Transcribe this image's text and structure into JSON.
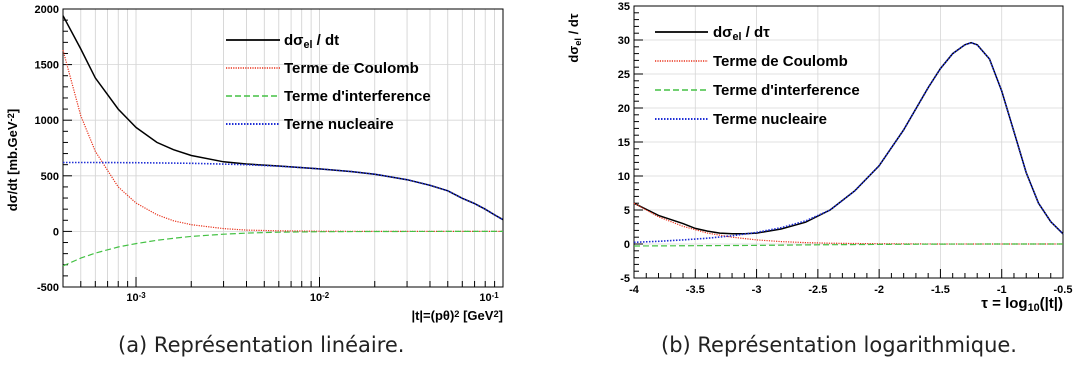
{
  "captions": {
    "a": "(a) Représentation linéaire.",
    "b": "(b) Représentation logarithmique."
  },
  "chart_data": [
    {
      "type": "line",
      "xscale": "log",
      "xlim": [
        0.0004,
        0.1
      ],
      "ylim": [
        -500,
        2000
      ],
      "grid": true,
      "legend_position": "top-right",
      "ylabel": "dσ/dt [mb.GeV⁻²]",
      "xlabel": "|t|=(pθ)² [GeV²]",
      "yticks": [
        "-500",
        "0",
        "500",
        "1000",
        "1500",
        "2000"
      ],
      "xticks": [
        "10⁻³",
        "10⁻²",
        "10⁻¹"
      ],
      "series": [
        {
          "name": "dσel / dt",
          "color": "#000000",
          "x": [
            0.0004,
            0.0005,
            0.0006,
            0.0008,
            0.001,
            0.0013,
            0.0016,
            0.002,
            0.003,
            0.004,
            0.006,
            0.008,
            0.01,
            0.015,
            0.02,
            0.03,
            0.04,
            0.05,
            0.06,
            0.07,
            0.08,
            0.09,
            0.1
          ],
          "y": [
            1940,
            1640,
            1380,
            1100,
            935,
            800,
            735,
            683,
            626,
            606,
            588,
            574,
            562,
            538,
            514,
            465,
            415,
            365,
            298,
            250,
            200,
            148,
            105
          ]
        },
        {
          "name": "Terme de Coulomb",
          "color": "#e8311a",
          "x": [
            0.0004,
            0.0005,
            0.0006,
            0.0008,
            0.001,
            0.0013,
            0.0016,
            0.002,
            0.003,
            0.004,
            0.006,
            0.01,
            0.02,
            0.05,
            0.1
          ],
          "y": [
            1630,
            1040,
            720,
            400,
            255,
            150,
            95,
            60,
            25,
            12,
            5,
            2,
            0,
            0,
            0
          ]
        },
        {
          "name": "Terme d'interference",
          "color": "#44c144",
          "x": [
            0.0004,
            0.0005,
            0.0006,
            0.0008,
            0.001,
            0.0013,
            0.0016,
            0.002,
            0.003,
            0.004,
            0.006,
            0.01,
            0.02,
            0.05,
            0.1
          ],
          "y": [
            -310,
            -240,
            -195,
            -140,
            -110,
            -80,
            -62,
            -45,
            -25,
            -15,
            -7,
            -3,
            -1,
            0,
            0
          ]
        },
        {
          "name": "Terne nucleaire",
          "color": "#1f2fd6",
          "x": [
            0.0004,
            0.0006,
            0.001,
            0.002,
            0.003,
            0.004,
            0.006,
            0.008,
            0.01,
            0.015,
            0.02,
            0.03,
            0.04,
            0.05,
            0.06,
            0.07,
            0.08,
            0.09,
            0.1
          ],
          "y": [
            620,
            620,
            618,
            612,
            605,
            600,
            586,
            574,
            562,
            538,
            514,
            465,
            415,
            365,
            298,
            250,
            200,
            148,
            105
          ]
        }
      ]
    },
    {
      "type": "line",
      "xlim": [
        -4,
        -0.5
      ],
      "ylim": [
        -5,
        35
      ],
      "grid": true,
      "legend_position": "top-left",
      "ylabel": "dσel / dτ",
      "xlabel": "τ = log10(|t|)",
      "yticks": [
        "-5",
        "0",
        "5",
        "10",
        "15",
        "20",
        "25",
        "30",
        "35"
      ],
      "xticks": [
        "-4",
        "-3.5",
        "-3",
        "-2.5",
        "-2",
        "-1.5",
        "-1",
        "-0.5"
      ],
      "series": [
        {
          "name": "dσel / dτ",
          "color": "#000000",
          "x": [
            -4,
            -3.8,
            -3.6,
            -3.5,
            -3.4,
            -3.3,
            -3.2,
            -3.1,
            -3.0,
            -2.8,
            -2.6,
            -2.4,
            -2.2,
            -2.0,
            -1.8,
            -1.6,
            -1.5,
            -1.4,
            -1.3,
            -1.25,
            -1.2,
            -1.1,
            -1.0,
            -0.9,
            -0.8,
            -0.7,
            -0.6,
            -0.5
          ],
          "y": [
            6.0,
            4.2,
            3.0,
            2.3,
            1.9,
            1.6,
            1.5,
            1.5,
            1.6,
            2.2,
            3.2,
            5.0,
            7.8,
            11.5,
            16.8,
            23.0,
            25.8,
            28.0,
            29.3,
            29.6,
            29.3,
            27.2,
            22.5,
            16.5,
            10.5,
            6.0,
            3.3,
            1.5
          ]
        },
        {
          "name": "Terme de Coulomb",
          "color": "#e8311a",
          "x": [
            -4,
            -3.8,
            -3.6,
            -3.4,
            -3.2,
            -3.0,
            -2.8,
            -2.6,
            -2.4,
            -2.2,
            -2.0,
            -1.5,
            -1.0,
            -0.5
          ],
          "y": [
            6.0,
            4.0,
            2.6,
            1.6,
            1.0,
            0.6,
            0.35,
            0.2,
            0.12,
            0.07,
            0.04,
            0.0,
            0.0,
            0.0
          ]
        },
        {
          "name": "Terme d'interference",
          "color": "#44c144",
          "x": [
            -4,
            -3.5,
            -3.0,
            -2.5,
            -2.0,
            -1.5,
            -1.0,
            -0.5
          ],
          "y": [
            -0.3,
            -0.25,
            -0.2,
            -0.12,
            -0.06,
            -0.02,
            0.0,
            0.0
          ]
        },
        {
          "name": "Terme nucleaire",
          "color": "#1f2fd6",
          "x": [
            -4,
            -3.8,
            -3.6,
            -3.4,
            -3.2,
            -3.0,
            -2.8,
            -2.6,
            -2.4,
            -2.2,
            -2.0,
            -1.8,
            -1.6,
            -1.5,
            -1.4,
            -1.3,
            -1.25,
            -1.2,
            -1.1,
            -1.0,
            -0.9,
            -0.8,
            -0.7,
            -0.6,
            -0.5
          ],
          "y": [
            0.25,
            0.4,
            0.6,
            0.85,
            1.2,
            1.7,
            2.4,
            3.4,
            5.0,
            7.8,
            11.5,
            16.8,
            23.0,
            25.8,
            28.0,
            29.3,
            29.6,
            29.3,
            27.2,
            22.5,
            16.5,
            10.5,
            6.0,
            3.3,
            1.5
          ]
        }
      ]
    }
  ]
}
